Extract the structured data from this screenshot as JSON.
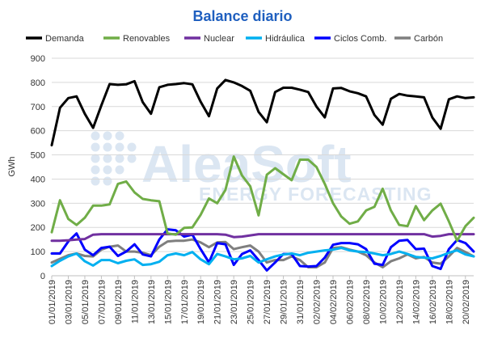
{
  "chart_data": {
    "type": "line",
    "title": "Balance diario",
    "xlabel": "",
    "ylabel": "GWh",
    "ylim": [
      0,
      900
    ],
    "yticks": [
      0,
      100,
      200,
      300,
      400,
      500,
      600,
      700,
      800,
      900
    ],
    "grid": true,
    "legend_position": "top",
    "watermark": {
      "brand": "AleaSoft",
      "tagline": "ENERGY FORECASTING"
    },
    "x": [
      "01/01/2019",
      "02/01/2019",
      "03/01/2019",
      "04/01/2019",
      "05/01/2019",
      "06/01/2019",
      "07/01/2019",
      "08/01/2019",
      "09/01/2019",
      "10/01/2019",
      "11/01/2019",
      "12/01/2019",
      "13/01/2019",
      "14/01/2019",
      "15/01/2019",
      "16/01/2019",
      "17/01/2019",
      "18/01/2019",
      "19/01/2019",
      "20/01/2019",
      "21/01/2019",
      "22/01/2019",
      "23/01/2019",
      "24/01/2019",
      "25/01/2019",
      "26/01/2019",
      "27/01/2019",
      "28/01/2019",
      "29/01/2019",
      "30/01/2019",
      "31/01/2019",
      "01/02/2019",
      "02/02/2019",
      "03/02/2019",
      "04/02/2019",
      "05/02/2019",
      "06/02/2019",
      "07/02/2019",
      "08/02/2019",
      "09/02/2019",
      "10/02/2019",
      "11/02/2019",
      "12/02/2019",
      "13/02/2019",
      "14/02/2019",
      "15/02/2019",
      "16/02/2019",
      "17/02/2019",
      "18/02/2019",
      "19/02/2019",
      "20/02/2019",
      "21/02/2019"
    ],
    "x_tick_labels": [
      "01/01/2019",
      "03/01/2019",
      "05/01/2019",
      "07/01/2019",
      "09/01/2019",
      "11/01/2019",
      "13/01/2019",
      "15/01/2019",
      "17/01/2019",
      "19/01/2019",
      "21/01/2019",
      "23/01/2019",
      "25/01/2019",
      "27/01/2019",
      "29/01/2019",
      "31/01/2019",
      "02/02/2019",
      "04/02/2019",
      "06/02/2019",
      "08/02/2019",
      "10/02/2019",
      "12/02/2019",
      "14/02/2019",
      "16/02/2019",
      "18/02/2019",
      "20/02/2019"
    ],
    "series": [
      {
        "name": "Demanda",
        "color": "#000000",
        "values": [
          540,
          695,
          735,
          742,
          670,
          612,
          705,
          793,
          790,
          792,
          805,
          718,
          670,
          780,
          790,
          793,
          797,
          792,
          720,
          660,
          775,
          810,
          800,
          785,
          765,
          678,
          635,
          760,
          778,
          778,
          770,
          760,
          700,
          655,
          775,
          777,
          763,
          755,
          742,
          665,
          625,
          732,
          752,
          745,
          742,
          738,
          655,
          608,
          730,
          742,
          735,
          738
        ]
      },
      {
        "name": "Renovables",
        "color": "#70ad47",
        "values": [
          180,
          312,
          235,
          210,
          240,
          290,
          290,
          295,
          380,
          390,
          345,
          318,
          312,
          308,
          175,
          170,
          198,
          200,
          252,
          320,
          300,
          355,
          493,
          415,
          370,
          250,
          418,
          445,
          420,
          395,
          480,
          480,
          450,
          380,
          300,
          245,
          215,
          225,
          270,
          285,
          360,
          270,
          210,
          205,
          288,
          230,
          270,
          298,
          225,
          145,
          205,
          240
        ]
      },
      {
        "name": "Nuclear",
        "color": "#7030a0",
        "values": [
          145,
          145,
          147,
          150,
          152,
          170,
          172,
          172,
          172,
          172,
          172,
          172,
          172,
          172,
          172,
          172,
          172,
          172,
          172,
          172,
          172,
          170,
          160,
          162,
          167,
          172,
          172,
          172,
          172,
          172,
          172,
          172,
          172,
          172,
          172,
          172,
          172,
          172,
          172,
          172,
          172,
          172,
          172,
          172,
          172,
          172,
          162,
          165,
          172,
          172,
          172,
          172
        ]
      },
      {
        "name": "Hidráulica",
        "color": "#00b0f0",
        "values": [
          40,
          62,
          80,
          92,
          60,
          42,
          65,
          65,
          52,
          62,
          68,
          45,
          48,
          58,
          85,
          92,
          85,
          98,
          68,
          48,
          90,
          80,
          68,
          72,
          82,
          55,
          68,
          80,
          88,
          92,
          85,
          95,
          100,
          105,
          108,
          115,
          105,
          100,
          98,
          92,
          85,
          90,
          100,
          90,
          78,
          75,
          72,
          82,
          95,
          105,
          88,
          80
        ]
      },
      {
        "name": "Ciclos Comb.",
        "color": "#0000ff",
        "values": [
          92,
          92,
          142,
          175,
          108,
          85,
          115,
          120,
          82,
          100,
          130,
          88,
          80,
          150,
          192,
          188,
          162,
          170,
          110,
          55,
          135,
          130,
          45,
          90,
          105,
          65,
          22,
          55,
          90,
          90,
          40,
          38,
          40,
          75,
          128,
          135,
          135,
          130,
          110,
          50,
          45,
          118,
          145,
          148,
          110,
          112,
          40,
          28,
          110,
          148,
          135,
          100
        ]
      },
      {
        "name": "Carbón",
        "color": "#7f7f7f",
        "values": [
          55,
          70,
          85,
          92,
          82,
          80,
          108,
          120,
          125,
          100,
          100,
          95,
          85,
          120,
          142,
          145,
          145,
          150,
          138,
          118,
          138,
          140,
          110,
          118,
          125,
          100,
          55,
          65,
          65,
          80,
          65,
          35,
          35,
          55,
          115,
          118,
          108,
          100,
          85,
          55,
          35,
          60,
          72,
          88,
          72,
          78,
          55,
          50,
          80,
          115,
          98,
          80
        ]
      }
    ]
  }
}
